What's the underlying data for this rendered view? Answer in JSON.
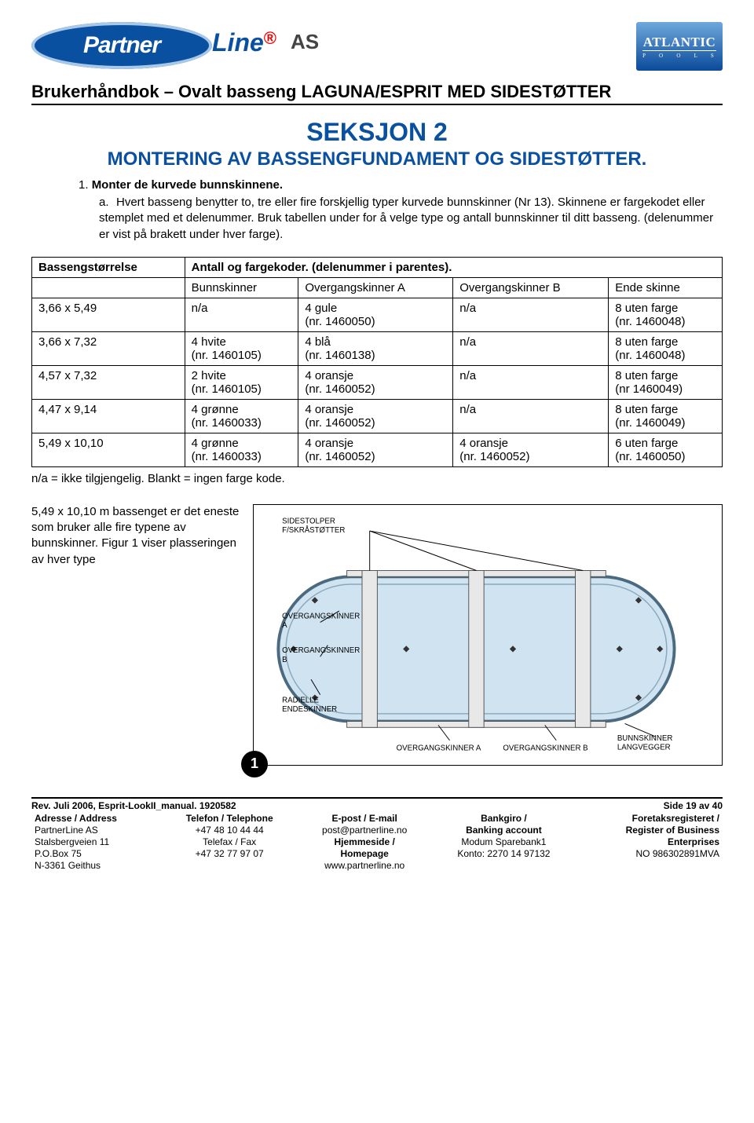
{
  "doc_title": "Brukerhåndbok – Ovalt basseng LAGUNA/ESPRIT MED SIDESTØTTER",
  "section_title": "SEKSJON 2",
  "section_sub": "MONTERING AV BASSENGFUNDAMENT OG SIDESTØTTER.",
  "step_num": "1.",
  "step_title": "Monter de kurvede bunnskinnene.",
  "step_letter": "a.",
  "step_body": "Hvert basseng benytter to, tre eller fire forskjellig typer kurvede bunnskinner (Nr 13). Skinnene er fargekodet eller stemplet med et delenummer. Bruk tabellen under for å velge type og antall bunnskinner til ditt basseng. (delenummer er vist på brakett under hver farge).",
  "table": {
    "header_left": "Bassengstørrelse",
    "header_right": "Antall og fargekoder. (delenummer i parentes).",
    "subheaders": [
      "",
      "Bunnskinner",
      "Overgangskinner A",
      "Overgangskinner B",
      "Ende skinne"
    ],
    "rows": [
      [
        "3,66 x  5,49",
        "n/a",
        "4 gule\n(nr. 1460050)",
        "n/a",
        "8 uten farge\n(nr. 1460048)"
      ],
      [
        "3,66 x  7,32",
        "4 hvite\n(nr. 1460105)",
        "4 blå\n(nr. 1460138)",
        "n/a",
        "8 uten farge\n(nr. 1460048)"
      ],
      [
        "4,57 x  7,32",
        "2 hvite\n(nr. 1460105)",
        "4 oransje\n(nr. 1460052)",
        "n/a",
        "8 uten farge\n(nr 1460049)"
      ],
      [
        "4,47 x  9,14",
        "4 grønne\n(nr. 1460033)",
        "4 oransje\n(nr. 1460052)",
        "n/a",
        "8 uten farge\n(nr. 1460049)"
      ],
      [
        "5,49 x  10,10",
        "4 grønne\n(nr. 1460033)",
        "4 oransje\n(nr. 1460052)",
        "4 oransje\n(nr. 1460052)",
        "6 uten farge\n(nr. 1460050)"
      ]
    ]
  },
  "note": "n/a = ikke tilgjengelig. Blankt = ingen farge kode.",
  "fig_text": "5,49 x 10,10 m bassenget er det eneste som bruker alle fire typene av bunnskinner. Figur 1 viser plasseringen av hver type",
  "fig_num": "1",
  "diagram_labels": {
    "l1": "SIDESTOLPER\nF/SKRÅSTØTTER",
    "l2": "OVERGANGSKINNER\nA",
    "l3": "OVERGANGSKINNER\nB",
    "l4": "RADIELLE\nENDESKINNER",
    "l5": "OVERGANGSKINNER A",
    "l6": "OVERGANGSKINNER B",
    "l7": "BUNNSKINNER\nLANGVEGGER"
  },
  "footer": {
    "rev": "Rev. Juli 2006, Esprit-LookII_manual. 1920582",
    "page": "Side 19 av 40",
    "cols": [
      {
        "h": "Adresse / Address",
        "lines": [
          "PartnerLine AS",
          "Stalsbergveien 11",
          "P.O.Box 75",
          "N-3361 Geithus"
        ]
      },
      {
        "h": "Telefon / Telephone",
        "lines": [
          "+47 48 10 44 44",
          "Telefax / Fax",
          "+47 32 77 97 07"
        ]
      },
      {
        "h": "E-post / E-mail",
        "lines": [
          "post@partnerline.no",
          "Hjemmeside /",
          "Homepage",
          "www.partnerline.no"
        ]
      },
      {
        "h": "Bankgiro /",
        "h2": "Banking account",
        "lines": [
          "Modum Sparebank1",
          "Konto: 2270 14 97132"
        ]
      },
      {
        "h": "Foretaksregisteret /",
        "h2": "Register of Business",
        "h3": "Enterprises",
        "lines": [
          "NO 986302891MVA"
        ]
      }
    ]
  },
  "colors": {
    "brand_blue": "#0a50a1",
    "light_blue": "#a8c8e8",
    "pool_fill": "#cfe3f0",
    "pool_stroke": "#4b6a80",
    "diagram_gray": "#888"
  }
}
